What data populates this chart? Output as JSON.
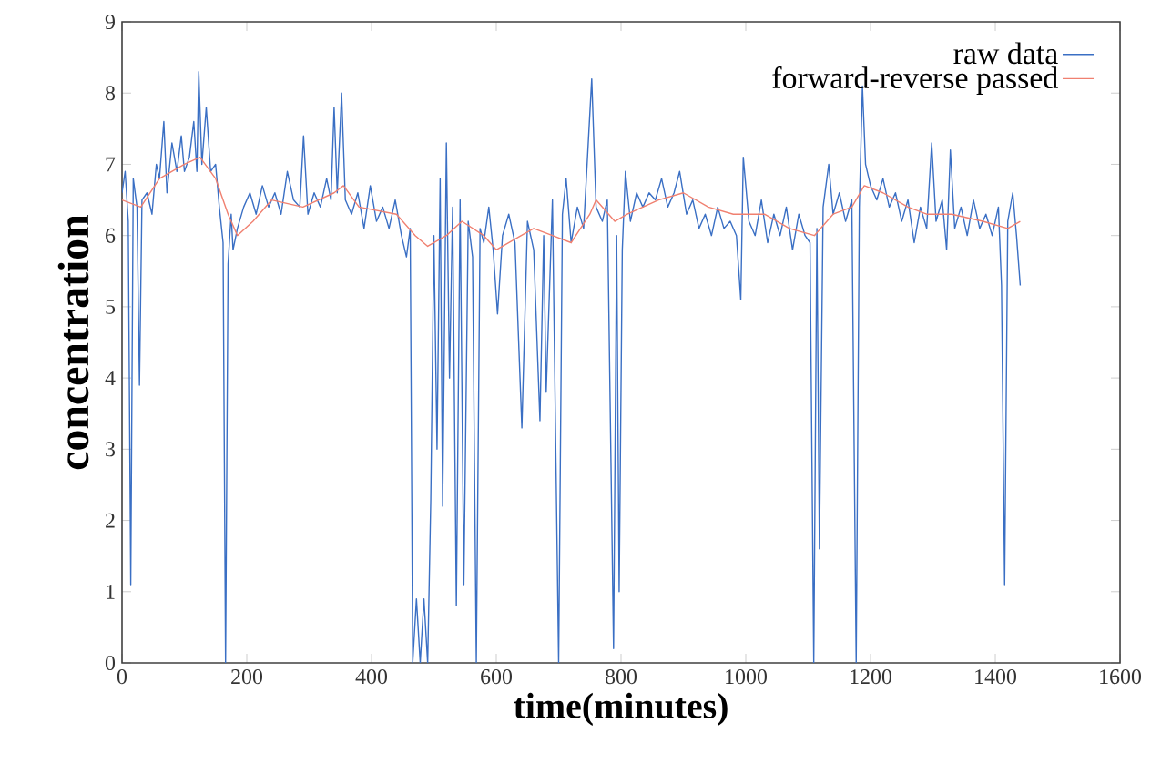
{
  "chart_data": {
    "type": "line",
    "xlabel": "time(minutes)",
    "ylabel": "concentration",
    "xlim": [
      0,
      1600
    ],
    "ylim": [
      0,
      9
    ],
    "xticks": [
      0,
      200,
      400,
      600,
      800,
      1000,
      1200,
      1400,
      1600
    ],
    "yticks": [
      0,
      1,
      2,
      3,
      4,
      5,
      6,
      7,
      8,
      9
    ],
    "legend": "top right",
    "grid": false,
    "marker": "none",
    "line_style": "solid",
    "series": [
      {
        "name": "raw data",
        "color": "#3a6fc4",
        "x": [
          0,
          5,
          10,
          14,
          18,
          24,
          28,
          32,
          40,
          48,
          55,
          60,
          67,
          72,
          80,
          88,
          95,
          100,
          108,
          115,
          120,
          123,
          128,
          135,
          142,
          150,
          156,
          162,
          166,
          170,
          175,
          178,
          185,
          195,
          205,
          215,
          225,
          235,
          245,
          255,
          265,
          275,
          285,
          291,
          298,
          308,
          318,
          328,
          335,
          340,
          345,
          352,
          358,
          368,
          378,
          388,
          398,
          408,
          418,
          428,
          438,
          448,
          456,
          462,
          466,
          472,
          478,
          484,
          490,
          495,
          500,
          505,
          510,
          514,
          520,
          525,
          530,
          536,
          542,
          548,
          555,
          562,
          568,
          574,
          580,
          588,
          595,
          602,
          610,
          620,
          630,
          641,
          650,
          660,
          670,
          676,
          680,
          690,
          700,
          706,
          712,
          720,
          730,
          740,
          753,
          760,
          770,
          778,
          788,
          793,
          797,
          802,
          807,
          815,
          825,
          835,
          845,
          855,
          865,
          875,
          885,
          894,
          905,
          915,
          925,
          935,
          945,
          955,
          965,
          975,
          985,
          992,
          996,
          1005,
          1015,
          1025,
          1035,
          1045,
          1055,
          1065,
          1075,
          1085,
          1095,
          1103,
          1109,
          1114,
          1118,
          1124,
          1133,
          1140,
          1150,
          1160,
          1170,
          1177,
          1182,
          1187,
          1192,
          1200,
          1210,
          1220,
          1230,
          1240,
          1250,
          1260,
          1270,
          1280,
          1290,
          1298,
          1305,
          1315,
          1322,
          1328,
          1335,
          1345,
          1355,
          1365,
          1375,
          1385,
          1395,
          1405,
          1410,
          1415,
          1420,
          1428,
          1434,
          1440
        ],
        "values": [
          6.6,
          6.9,
          6.2,
          1.1,
          6.8,
          6.4,
          3.9,
          6.5,
          6.6,
          6.3,
          7.0,
          6.8,
          7.6,
          6.6,
          7.3,
          6.9,
          7.4,
          6.9,
          7.1,
          7.6,
          6.9,
          8.3,
          7.0,
          7.8,
          6.9,
          7.0,
          6.4,
          5.9,
          0.0,
          5.6,
          6.3,
          5.8,
          6.1,
          6.4,
          6.6,
          6.3,
          6.7,
          6.4,
          6.6,
          6.3,
          6.9,
          6.5,
          6.4,
          7.4,
          6.3,
          6.6,
          6.4,
          6.8,
          6.5,
          7.8,
          6.6,
          8.0,
          6.5,
          6.3,
          6.6,
          6.1,
          6.7,
          6.2,
          6.4,
          6.1,
          6.5,
          6.0,
          5.7,
          6.1,
          0.0,
          0.9,
          0.0,
          0.9,
          0.0,
          2.3,
          6.0,
          3.0,
          6.8,
          2.2,
          7.3,
          4.0,
          6.4,
          0.8,
          6.5,
          1.1,
          6.2,
          5.7,
          0.0,
          6.1,
          5.9,
          6.4,
          5.8,
          4.9,
          6.0,
          6.3,
          5.9,
          3.3,
          6.2,
          5.8,
          3.4,
          6.0,
          3.8,
          6.5,
          0.0,
          6.3,
          6.8,
          5.9,
          6.4,
          6.1,
          8.2,
          6.4,
          6.2,
          6.5,
          0.2,
          6.0,
          1.0,
          5.8,
          6.9,
          6.2,
          6.6,
          6.4,
          6.6,
          6.5,
          6.8,
          6.4,
          6.6,
          6.9,
          6.3,
          6.5,
          6.1,
          6.3,
          6.0,
          6.4,
          6.1,
          6.2,
          6.0,
          5.1,
          7.1,
          6.2,
          6.0,
          6.5,
          5.9,
          6.3,
          6.0,
          6.4,
          5.8,
          6.3,
          6.0,
          5.9,
          0.0,
          6.1,
          1.6,
          6.4,
          7.0,
          6.3,
          6.6,
          6.2,
          6.5,
          0.0,
          6.4,
          8.1,
          7.0,
          6.7,
          6.5,
          6.8,
          6.4,
          6.6,
          6.2,
          6.5,
          5.9,
          6.4,
          6.1,
          7.3,
          6.2,
          6.5,
          5.8,
          7.2,
          6.1,
          6.4,
          6.0,
          6.5,
          6.1,
          6.3,
          6.0,
          6.4,
          5.3,
          1.1,
          6.2,
          6.6,
          6.0,
          5.3
        ]
      },
      {
        "name": "forward-reverse passed",
        "color": "#f08070",
        "x": [
          0,
          30,
          60,
          100,
          125,
          150,
          170,
          185,
          210,
          240,
          290,
          340,
          355,
          380,
          440,
          470,
          490,
          520,
          545,
          580,
          600,
          640,
          660,
          690,
          720,
          750,
          760,
          790,
          810,
          860,
          900,
          940,
          980,
          1030,
          1070,
          1110,
          1140,
          1170,
          1190,
          1220,
          1260,
          1290,
          1330,
          1380,
          1420,
          1440
        ],
        "values": [
          6.5,
          6.4,
          6.8,
          7.0,
          7.1,
          6.8,
          6.3,
          6.0,
          6.2,
          6.5,
          6.4,
          6.6,
          6.7,
          6.4,
          6.3,
          6.0,
          5.85,
          6.0,
          6.2,
          6.0,
          5.8,
          6.0,
          6.1,
          6.0,
          5.9,
          6.3,
          6.5,
          6.2,
          6.3,
          6.5,
          6.6,
          6.4,
          6.3,
          6.3,
          6.1,
          6.0,
          6.3,
          6.4,
          6.7,
          6.6,
          6.4,
          6.3,
          6.3,
          6.2,
          6.1,
          6.2
        ]
      }
    ]
  }
}
